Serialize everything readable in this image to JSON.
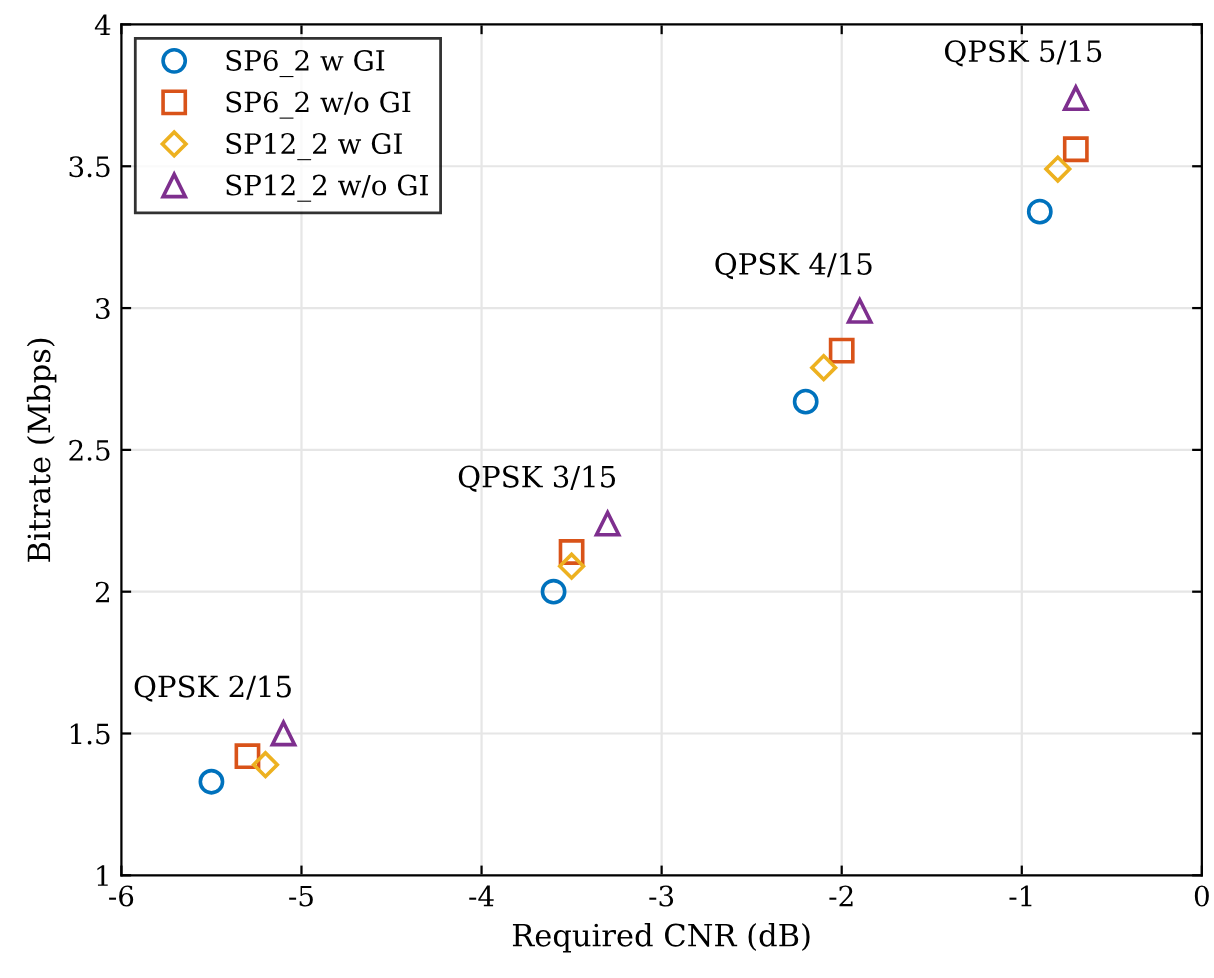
{
  "chart_data": {
    "type": "scatter",
    "xlabel": "Required CNR (dB)",
    "ylabel": "Bitrate (Mbps)",
    "xlim": [
      -6,
      0
    ],
    "ylim": [
      1,
      4
    ],
    "xticks": [
      -6,
      -5,
      -4,
      -3,
      -2,
      -1,
      0
    ],
    "yticks": [
      1,
      1.5,
      2,
      2.5,
      3,
      3.5,
      4
    ],
    "grid": true,
    "legend": "top left",
    "series": [
      {
        "name": "SP6_2 w GI",
        "color": "#0072bd",
        "marker": "circle",
        "x": [
          -5.5,
          -3.6,
          -2.2,
          -0.9
        ],
        "values": [
          1.33,
          2.0,
          2.67,
          3.34
        ]
      },
      {
        "name": "SP6_2 w/o GI",
        "color": "#d95319",
        "marker": "square",
        "x": [
          -5.3,
          -3.5,
          -2.0,
          -0.7
        ],
        "values": [
          1.42,
          2.14,
          2.85,
          3.56
        ]
      },
      {
        "name": "SP12_2 w GI",
        "color": "#edb120",
        "marker": "diamond",
        "x": [
          -5.2,
          -3.5,
          -2.1,
          -0.8
        ],
        "values": [
          1.39,
          2.09,
          2.79,
          3.49
        ]
      },
      {
        "name": "SP12_2 w/o GI",
        "color": "#7e2f8e",
        "marker": "triangle",
        "x": [
          -5.1,
          -3.3,
          -1.9,
          -0.7
        ],
        "values": [
          1.5,
          2.24,
          2.99,
          3.74
        ]
      }
    ],
    "annotations": [
      "QPSK 2/15",
      "QPSK 3/15",
      "QPSK 4/15",
      "QPSK 5/15"
    ]
  }
}
